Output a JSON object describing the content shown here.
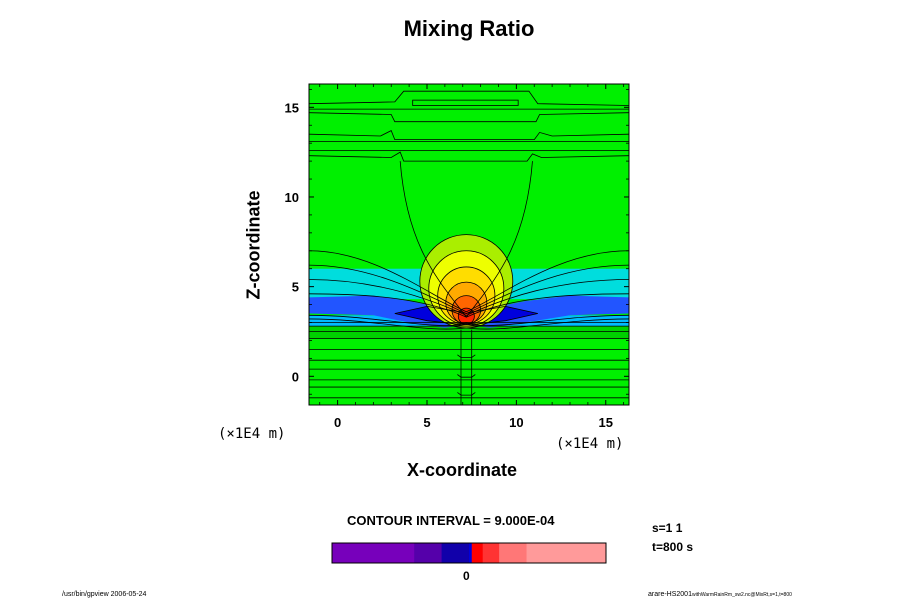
{
  "chart_data": {
    "type": "heatmap",
    "title": "Mixing Ratio",
    "xlabel": "X-coordinate",
    "ylabel": "Z-coordinate",
    "x_unit": "(×1E4 m)",
    "y_unit": "(×1E4 m)",
    "xlim": [
      -1.6,
      16.3
    ],
    "ylim": [
      -1.6,
      16.3
    ],
    "x_ticks": [
      0,
      5,
      10,
      15
    ],
    "y_ticks": [
      0,
      5,
      10,
      15
    ],
    "x_tick_labels": [
      "0",
      "5",
      "10",
      "15"
    ],
    "y_tick_labels": [
      "0",
      "5",
      "10",
      "15"
    ],
    "contour_interval_label": "CONTOUR INTERVAL = 9.000E-04",
    "contour_interval": 0.0009,
    "colorbar": {
      "zero_label": "0",
      "colors": [
        "#7700bb",
        "#5500aa",
        "#1100aa",
        "#0000dd",
        "#ff0000",
        "#ff3333",
        "#ff7777",
        "#ff9a9a"
      ]
    },
    "colors": {
      "background": "#00f000",
      "dark_green": "#00d000",
      "cyan": "#00dddd",
      "sky": "#00bbff",
      "blue": "#2255ff",
      "deep_blue": "#0000dd",
      "yellow": "#eeff00",
      "orange": "#ffaa00",
      "red": "#ff2200"
    },
    "grid": false,
    "legend": "bottom"
  },
  "annotations": {
    "s_range": "s=1 1",
    "time": "t=800 s",
    "footer_left": "/usr/bin/gpview 2006-05-24",
    "footer_right_main": "arare-HS2001",
    "footer_right_sub": "withWarmRainRm_sw2.nc@MixRt,s=1,t=800"
  }
}
